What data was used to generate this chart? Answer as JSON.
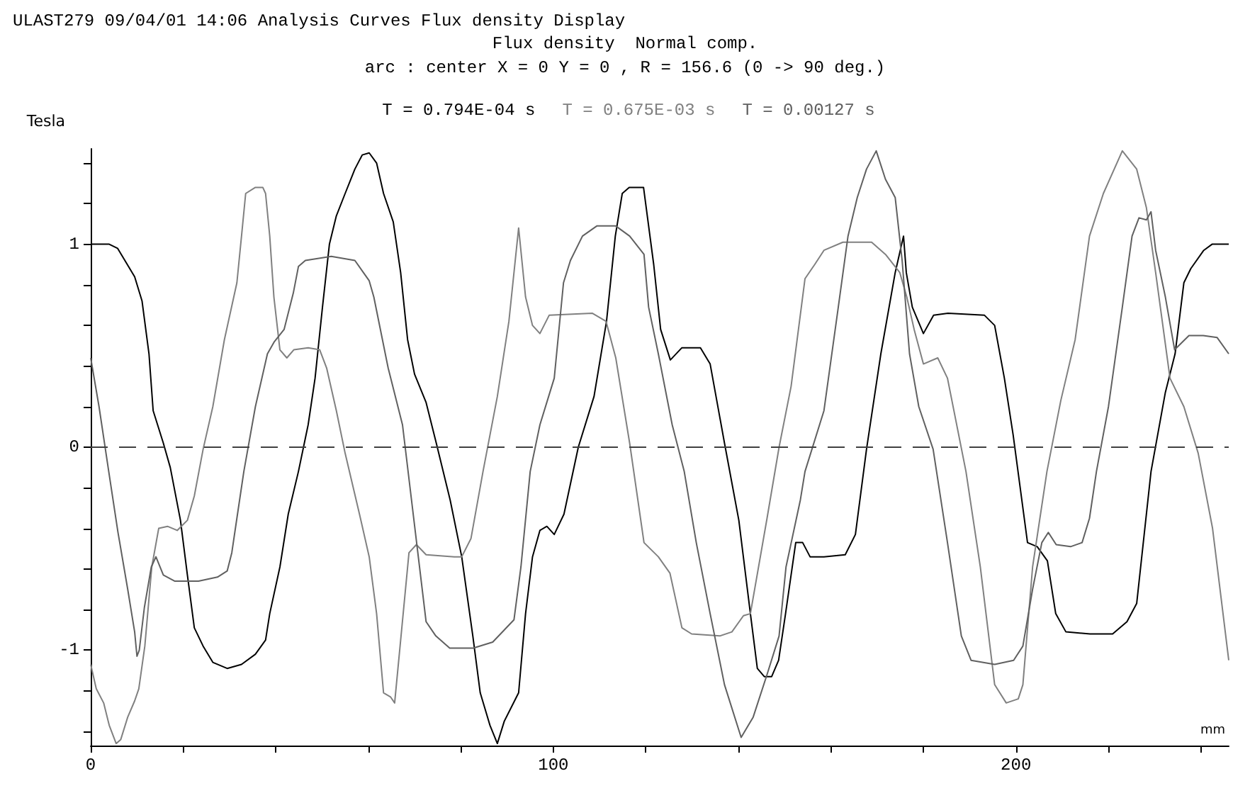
{
  "chart_data": {
    "type": "line",
    "title": "ULAST279 09/04/01 14:06 Analysis Curves Flux density Display",
    "subtitle": "Flux density  Normal comp.",
    "annotations": [
      "arc : center X = 0 Y = 0 , R = 156.6 (0 -> 90 deg.)"
    ],
    "xlabel": "mm",
    "ylabel": "Tesla",
    "xlim": [
      0,
      246
    ],
    "xticks": [
      0,
      {
        "value": 20,
        "label": null
      },
      {
        "value": 40,
        "label": null
      },
      {
        "value": 60,
        "label": null
      },
      {
        "value": 80,
        "label": null
      },
      100,
      {
        "value": 120,
        "label": null
      },
      {
        "value": 140,
        "label": null
      },
      {
        "value": 160,
        "label": null
      },
      {
        "value": 180,
        "label": null
      },
      200,
      {
        "value": 220,
        "label": null
      },
      {
        "value": 240,
        "label": null
      }
    ],
    "ylim": [
      -1.47,
      1.47
    ],
    "yticks": [
      {
        "value": -1.4,
        "label": null
      },
      {
        "value": -1.2,
        "label": null
      },
      -1,
      {
        "value": -0.8,
        "label": null
      },
      {
        "value": -0.6,
        "label": null
      },
      {
        "value": -0.4,
        "label": null
      },
      {
        "value": -0.2,
        "label": null
      },
      0,
      {
        "value": 0.2,
        "label": null
      },
      {
        "value": 0.4,
        "label": null
      },
      {
        "value": 0.6,
        "label": null
      },
      {
        "value": 0.8,
        "label": null
      },
      1,
      {
        "value": 1.2,
        "label": null
      },
      {
        "value": 1.4,
        "label": null
      }
    ],
    "grid": false,
    "legend": "top",
    "marker": "none",
    "line_style": "solid",
    "ref_lines": [
      {
        "axis": "y",
        "value": 0,
        "color": "#404040",
        "line_style": "dashed"
      }
    ],
    "series": [
      {
        "name": "T = 0.794E-04 s",
        "color": "#000000",
        "x": [
          0,
          4.0,
          5.8,
          9.5,
          11.1,
          12.6,
          13.5,
          15.7,
          17.2,
          19.4,
          20.9,
          22.4,
          24.3,
          26.4,
          29.5,
          32.6,
          35.6,
          37.8,
          38.7,
          40.9,
          42.7,
          44.9,
          47.0,
          48.5,
          50.1,
          51.6,
          53.1,
          55.0,
          57.1,
          58.7,
          60.2,
          61.8,
          63.3,
          65.4,
          67.0,
          68.5,
          70.0,
          72.5,
          74.7,
          77.7,
          80.2,
          82.6,
          84.2,
          86.3,
          87.9,
          89.4,
          92.5,
          94.0,
          95.5,
          97.1,
          98.6,
          100.2,
          102.3,
          105.4,
          108.8,
          111.5,
          113.4,
          114.9,
          116.4,
          119.5,
          121.7,
          123.2,
          125.3,
          127.8,
          131.8,
          133.9,
          137.0,
          140.1,
          142.6,
          144.1,
          145.6,
          147.2,
          148.7,
          150.2,
          152.4,
          153.9,
          155.5,
          158.5,
          163.1,
          165.3,
          167.7,
          170.8,
          173.9,
          175.7,
          176.3,
          177.6,
          180.0,
          182.2,
          185.3,
          193.2,
          195.4,
          197.5,
          199.4,
          202.5,
          204.6,
          206.8,
          208.6,
          210.8,
          216.0,
          220.9,
          224.0,
          226.1,
          229.2,
          232.3,
          234.4,
          236.3,
          237.8,
          240.6,
          242.4,
          246
        ],
        "values": [
          1.0,
          1.0,
          0.98,
          0.84,
          0.72,
          0.46,
          0.18,
          0.02,
          -0.1,
          -0.36,
          -0.63,
          -0.89,
          -0.98,
          -1.06,
          -1.09,
          -1.07,
          -1.02,
          -0.95,
          -0.82,
          -0.59,
          -0.33,
          -0.12,
          0.11,
          0.34,
          0.69,
          1.0,
          1.14,
          1.25,
          1.37,
          1.44,
          1.45,
          1.4,
          1.25,
          1.11,
          0.86,
          0.53,
          0.36,
          0.22,
          0.02,
          -0.26,
          -0.54,
          -0.93,
          -1.21,
          -1.37,
          -1.46,
          -1.35,
          -1.21,
          -0.82,
          -0.54,
          -0.41,
          -0.39,
          -0.43,
          -0.33,
          0.0,
          0.25,
          0.62,
          1.04,
          1.25,
          1.28,
          1.28,
          0.9,
          0.58,
          0.43,
          0.49,
          0.49,
          0.41,
          0.02,
          -0.36,
          -0.82,
          -1.09,
          -1.13,
          -1.13,
          -1.05,
          -0.82,
          -0.47,
          -0.47,
          -0.54,
          -0.54,
          -0.53,
          -0.43,
          -0.01,
          0.46,
          0.86,
          1.04,
          0.86,
          0.69,
          0.56,
          0.65,
          0.66,
          0.65,
          0.6,
          0.34,
          0.06,
          -0.47,
          -0.49,
          -0.56,
          -0.82,
          -0.91,
          -0.92,
          -0.92,
          -0.86,
          -0.77,
          -0.12,
          0.27,
          0.46,
          0.81,
          0.88,
          0.97,
          1.0,
          1.0
        ]
      },
      {
        "name": "T = 0.675E-03 s",
        "color": "#808080",
        "x": [
          0,
          1.2,
          2.8,
          4.0,
          5.5,
          6.5,
          8.0,
          9.5,
          10.4,
          11.7,
          13.2,
          14.7,
          16.6,
          18.7,
          20.9,
          22.4,
          24.3,
          26.4,
          28.9,
          31.6,
          32.6,
          33.5,
          35.6,
          37.2,
          37.8,
          38.7,
          39.6,
          40.9,
          42.4,
          43.9,
          47.0,
          49.5,
          51.0,
          53.1,
          55.0,
          58.1,
          60.2,
          61.8,
          63.3,
          64.8,
          65.7,
          67.0,
          68.8,
          70.4,
          72.5,
          78.6,
          80.2,
          82.2,
          84.8,
          87.9,
          90.4,
          92.5,
          94.0,
          95.5,
          97.1,
          99.1,
          108.4,
          111.4,
          113.5,
          116.5,
          119.6,
          122.7,
          125.2,
          127.8,
          129.9,
          136.0,
          138.6,
          141.1,
          142.6,
          146.2,
          148.8,
          151.4,
          154.4,
          156.5,
          158.5,
          162.6,
          168.8,
          171.8,
          174.9,
          176.4,
          178.0,
          180.0,
          183.1,
          185.2,
          189.2,
          192.3,
          195.4,
          197.9,
          200.5,
          201.5,
          203.6,
          206.7,
          209.7,
          212.8,
          215.9,
          218.9,
          223.0,
          226.1,
          228.2,
          230.2,
          233.3,
          236.3,
          239.4,
          242.5,
          246
        ],
        "values": [
          -1.07,
          -1.19,
          -1.26,
          -1.37,
          -1.46,
          -1.44,
          -1.33,
          -1.25,
          -1.19,
          -0.98,
          -0.59,
          -0.4,
          -0.39,
          -0.41,
          -0.36,
          -0.24,
          -0.01,
          0.2,
          0.53,
          0.81,
          1.04,
          1.25,
          1.28,
          1.28,
          1.25,
          1.04,
          0.74,
          0.48,
          0.44,
          0.48,
          0.49,
          0.48,
          0.39,
          0.18,
          -0.03,
          -0.33,
          -0.54,
          -0.82,
          -1.21,
          -1.23,
          -1.26,
          -0.95,
          -0.52,
          -0.48,
          -0.53,
          -0.54,
          -0.54,
          -0.45,
          -0.12,
          0.25,
          0.62,
          1.08,
          0.74,
          0.6,
          0.56,
          0.65,
          0.66,
          0.62,
          0.44,
          0.02,
          -0.47,
          -0.54,
          -0.62,
          -0.89,
          -0.92,
          -0.93,
          -0.91,
          -0.83,
          -0.82,
          -0.35,
          0.0,
          0.3,
          0.83,
          0.9,
          0.97,
          1.01,
          1.01,
          0.95,
          0.86,
          0.74,
          0.58,
          0.41,
          0.44,
          0.34,
          -0.12,
          -0.59,
          -1.17,
          -1.26,
          -1.24,
          -1.17,
          -0.59,
          -0.12,
          0.23,
          0.53,
          1.04,
          1.25,
          1.46,
          1.37,
          1.18,
          0.86,
          0.34,
          0.2,
          -0.03,
          -0.4,
          -1.05
        ]
      },
      {
        "name": "T = 0.00127 s",
        "color": "#606060",
        "x": [
          0,
          1.8,
          3.9,
          5.9,
          8.0,
          9.5,
          10.0,
          10.5,
          11.6,
          13.1,
          14.1,
          15.7,
          18.2,
          23.3,
          27.4,
          29.5,
          30.5,
          31.6,
          33.1,
          35.6,
          38.2,
          39.7,
          41.8,
          43.8,
          44.9,
          46.4,
          52.0,
          57.1,
          60.2,
          61.2,
          64.3,
          67.4,
          72.5,
          74.6,
          77.6,
          82.7,
          86.9,
          91.5,
          93.0,
          95.0,
          97.1,
          100.2,
          102.2,
          103.7,
          106.3,
          109.4,
          113.5,
          116.5,
          119.6,
          120.6,
          122.7,
          125.7,
          128.3,
          130.9,
          133.9,
          137.0,
          140.6,
          143.2,
          146.2,
          148.8,
          150.3,
          153.4,
          154.4,
          158.5,
          161.6,
          163.7,
          165.7,
          167.7,
          169.8,
          171.8,
          173.9,
          175.4,
          177.0,
          179.0,
          182.1,
          185.2,
          188.2,
          190.3,
          195.4,
          199.5,
          201.5,
          203.6,
          205.6,
          207.0,
          208.7,
          211.8,
          214.3,
          215.9,
          217.4,
          220.0,
          223.0,
          225.1,
          226.6,
          228.2,
          229.2,
          230.2,
          232.3,
          234.3,
          237.4,
          240.5,
          243.5,
          246
        ],
        "values": [
          0.44,
          0.2,
          -0.12,
          -0.42,
          -0.7,
          -0.91,
          -1.03,
          -1.0,
          -0.79,
          -0.59,
          -0.54,
          -0.63,
          -0.66,
          -0.66,
          -0.64,
          -0.61,
          -0.52,
          -0.35,
          -0.12,
          0.2,
          0.46,
          0.52,
          0.58,
          0.76,
          0.89,
          0.92,
          0.94,
          0.92,
          0.82,
          0.74,
          0.39,
          0.11,
          -0.86,
          -0.93,
          -0.99,
          -0.99,
          -0.96,
          -0.85,
          -0.59,
          -0.12,
          0.11,
          0.34,
          0.81,
          0.92,
          1.04,
          1.09,
          1.09,
          1.04,
          0.95,
          0.69,
          0.46,
          0.11,
          -0.12,
          -0.47,
          -0.82,
          -1.17,
          -1.43,
          -1.33,
          -1.12,
          -0.93,
          -0.59,
          -0.26,
          -0.12,
          0.18,
          0.69,
          1.04,
          1.23,
          1.37,
          1.46,
          1.32,
          1.23,
          0.92,
          0.46,
          0.2,
          -0.01,
          -0.47,
          -0.93,
          -1.05,
          -1.07,
          -1.05,
          -0.98,
          -0.7,
          -0.47,
          -0.42,
          -0.48,
          -0.49,
          -0.47,
          -0.35,
          -0.12,
          0.2,
          0.69,
          1.04,
          1.13,
          1.12,
          1.16,
          0.97,
          0.74,
          0.48,
          0.55,
          0.55,
          0.54,
          0.46
        ]
      }
    ]
  }
}
